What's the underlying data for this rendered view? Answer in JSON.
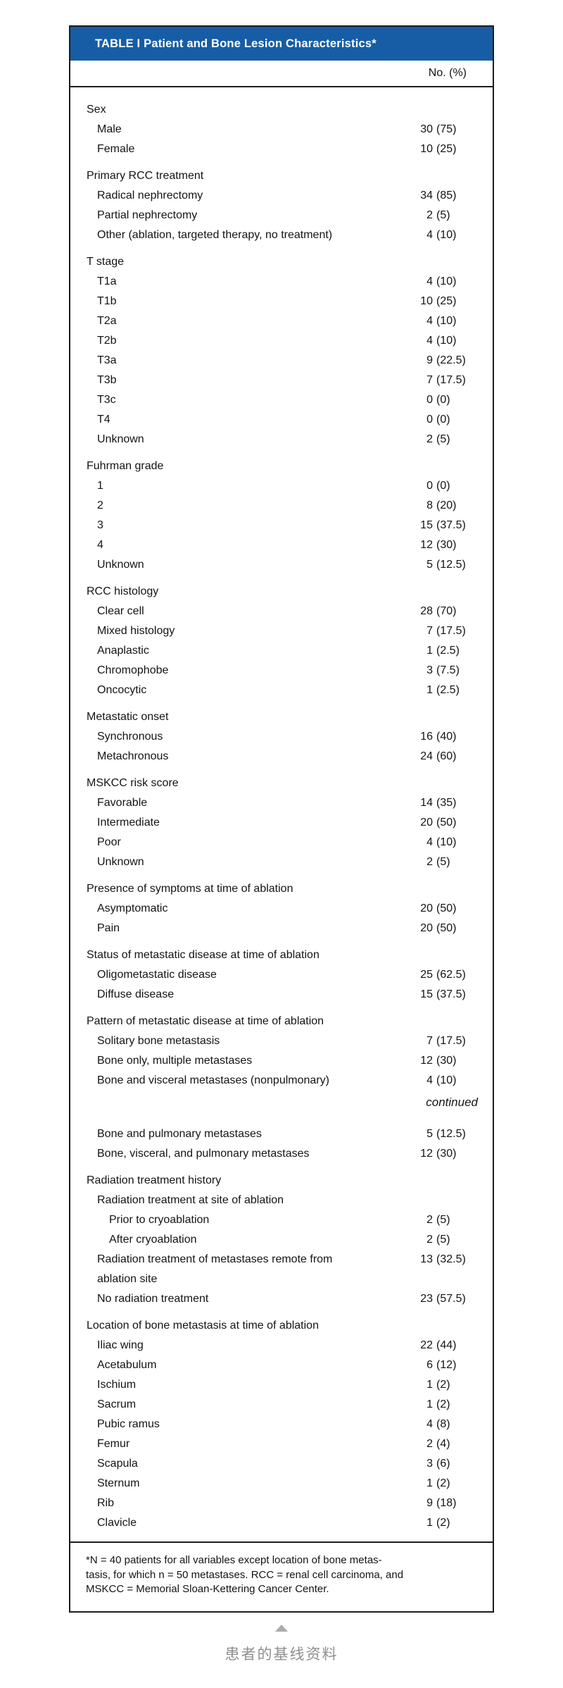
{
  "colors": {
    "header_bg": "#175da6",
    "header_text": "#ffffff",
    "border": "#1c1c1c",
    "body_text": "#141414",
    "caption_text_gray": "#8f8f8f",
    "triangle_gray": "#ababab"
  },
  "table": {
    "title": "TABLE I Patient and Bone Lesion Characteristics*",
    "column_header": "No. (%)",
    "continued_label": "continued",
    "sections": [
      {
        "header": "Sex",
        "rows": [
          {
            "label": "Male",
            "n": "30",
            "p": "(75)"
          },
          {
            "label": "Female",
            "n": "10",
            "p": "(25)"
          }
        ]
      },
      {
        "header": "Primary RCC treatment",
        "rows": [
          {
            "label": "Radical nephrectomy",
            "n": "34",
            "p": "(85)"
          },
          {
            "label": "Partial nephrectomy",
            "n": "2",
            "p": "(5)"
          },
          {
            "label": "Other (ablation, targeted therapy, no treatment)",
            "n": "4",
            "p": "(10)"
          }
        ]
      },
      {
        "header": "T stage",
        "rows": [
          {
            "label": "T1a",
            "n": "4",
            "p": "(10)"
          },
          {
            "label": "T1b",
            "n": "10",
            "p": "(25)"
          },
          {
            "label": "T2a",
            "n": "4",
            "p": "(10)"
          },
          {
            "label": "T2b",
            "n": "4",
            "p": "(10)"
          },
          {
            "label": "T3a",
            "n": "9",
            "p": "(22.5)"
          },
          {
            "label": "T3b",
            "n": "7",
            "p": "(17.5)"
          },
          {
            "label": "T3c",
            "n": "0",
            "p": "(0)"
          },
          {
            "label": "T4",
            "n": "0",
            "p": "(0)"
          },
          {
            "label": "Unknown",
            "n": "2",
            "p": "(5)"
          }
        ]
      },
      {
        "header": "Fuhrman grade",
        "rows": [
          {
            "label": "1",
            "n": "0",
            "p": "(0)"
          },
          {
            "label": "2",
            "n": "8",
            "p": "(20)"
          },
          {
            "label": "3",
            "n": "15",
            "p": "(37.5)"
          },
          {
            "label": "4",
            "n": "12",
            "p": "(30)"
          },
          {
            "label": "Unknown",
            "n": "5",
            "p": "(12.5)"
          }
        ]
      },
      {
        "header": "RCC histology",
        "rows": [
          {
            "label": "Clear cell",
            "n": "28",
            "p": "(70)"
          },
          {
            "label": "Mixed histology",
            "n": "7",
            "p": "(17.5)"
          },
          {
            "label": "Anaplastic",
            "n": "1",
            "p": "(2.5)"
          },
          {
            "label": "Chromophobe",
            "n": "3",
            "p": "(7.5)"
          },
          {
            "label": "Oncocytic",
            "n": "1",
            "p": "(2.5)"
          }
        ]
      },
      {
        "header": "Metastatic onset",
        "rows": [
          {
            "label": "Synchronous",
            "n": "16",
            "p": "(40)"
          },
          {
            "label": "Metachronous",
            "n": "24",
            "p": "(60)"
          }
        ]
      },
      {
        "header": "MSKCC risk score",
        "rows": [
          {
            "label": "Favorable",
            "n": "14",
            "p": "(35)"
          },
          {
            "label": "Intermediate",
            "n": "20",
            "p": "(50)"
          },
          {
            "label": "Poor",
            "n": "4",
            "p": "(10)"
          },
          {
            "label": "Unknown",
            "n": "2",
            "p": "(5)"
          }
        ]
      },
      {
        "header": "Presence of symptoms at time of ablation",
        "rows": [
          {
            "label": "Asymptomatic",
            "n": "20",
            "p": "(50)"
          },
          {
            "label": "Pain",
            "n": "20",
            "p": "(50)"
          }
        ]
      },
      {
        "header": "Status of metastatic disease at time of ablation",
        "rows": [
          {
            "label": "Oligometastatic disease",
            "n": "25",
            "p": "(62.5)"
          },
          {
            "label": "Diffuse disease",
            "n": "15",
            "p": "(37.5)"
          }
        ]
      },
      {
        "header": "Pattern of metastatic disease at time of ablation",
        "rows": [
          {
            "label": "Solitary bone metastasis",
            "n": "7",
            "p": "(17.5)"
          },
          {
            "label": "Bone only, multiple metastases",
            "n": "12",
            "p": "(30)"
          },
          {
            "label": "Bone and visceral metastases (nonpulmonary)",
            "n": "4",
            "p": "(10)"
          },
          {
            "continued": true
          },
          {
            "label": "Bone and pulmonary metastases",
            "n": "5",
            "p": "(12.5)"
          },
          {
            "label": "Bone, visceral, and pulmonary metastases",
            "n": "12",
            "p": "(30)"
          }
        ]
      },
      {
        "header": "Radiation treatment history",
        "rows": [
          {
            "label": "Radiation treatment at site of ablation",
            "n": "",
            "p": ""
          },
          {
            "label": "Prior to cryoablation",
            "n": "2",
            "p": "(5)",
            "indent": 2
          },
          {
            "label": "After cryoablation",
            "n": "2",
            "p": "(5)",
            "indent": 2
          },
          {
            "label": "Radiation treatment of metastases remote from ablation site",
            "n": "13",
            "p": "(32.5)",
            "wrap": true
          },
          {
            "label": "No radiation treatment",
            "n": "23",
            "p": "(57.5)"
          }
        ]
      },
      {
        "header": "Location of bone metastasis at time of ablation",
        "rows": [
          {
            "label": "Iliac wing",
            "n": "22",
            "p": "(44)"
          },
          {
            "label": "Acetabulum",
            "n": "6",
            "p": "(12)"
          },
          {
            "label": "Ischium",
            "n": "1",
            "p": "(2)"
          },
          {
            "label": "Sacrum",
            "n": "1",
            "p": "(2)"
          },
          {
            "label": "Pubic ramus",
            "n": "4",
            "p": "(8)"
          },
          {
            "label": "Femur",
            "n": "2",
            "p": "(4)"
          },
          {
            "label": "Scapula",
            "n": "3",
            "p": "(6)"
          },
          {
            "label": "Sternum",
            "n": "1",
            "p": "(2)"
          },
          {
            "label": "Rib",
            "n": "9",
            "p": "(18)"
          },
          {
            "label": "Clavicle",
            "n": "1",
            "p": "(2)"
          }
        ]
      }
    ],
    "footnote_lines": [
      "*N = 40 patients for all variables except location of bone metas-",
      "tasis, for which n = 50 metastases. RCC = renal cell carcinoma, and",
      "MSKCC = Memorial Sloan-Kettering Cancer Center."
    ]
  },
  "caption": {
    "marker_icon": "up-triangle-icon",
    "text": "患者的基线资料"
  }
}
